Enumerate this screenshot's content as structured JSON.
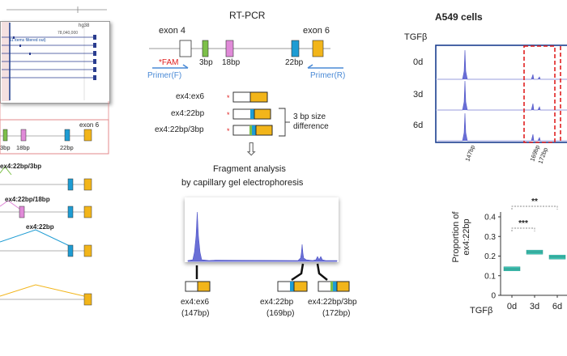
{
  "left": {
    "browser": {
      "assembly": "hg38",
      "coord": "78,040,000",
      "track": "44 (11 items filtered out)"
    },
    "zoom_exon6": "exon 6",
    "zoom_labels": [
      "3bp",
      "18bp",
      "22bp"
    ],
    "isoforms": [
      "ex4:22bp/3bp",
      "ex4:22bp/18bp",
      "ex4:22bp"
    ]
  },
  "rtpcr": {
    "title": "RT-PCR",
    "exon4": "exon 4",
    "exon6": "exon 6",
    "labels": [
      "3bp",
      "18bp",
      "22bp"
    ],
    "fam": "*FAM",
    "primer_f": "Primer(F)",
    "primer_r": "Primer(R)",
    "products": [
      "ex4:ex6",
      "ex4:22bp",
      "ex4:22bp/3bp"
    ],
    "size_note": "3 bp size\ndifference",
    "arrow": "⇩"
  },
  "fragment": {
    "title_line1": "Fragment analysis",
    "title_line2": "by capillary gel electrophoresis",
    "peaks": [
      {
        "name": "ex4:ex6",
        "size": "(147bp)"
      },
      {
        "name": "ex4:22bp",
        "size": "(169bp)"
      },
      {
        "name": "ex4:22bp/3bp",
        "size": "(172bp)"
      }
    ]
  },
  "a549": {
    "title": "A549 cells",
    "tgf_label": "TGFβ",
    "rows": [
      "0d",
      "3d",
      "6d"
    ],
    "x_labels": [
      "147bp",
      "169bp",
      "172bp"
    ]
  },
  "chart_data": {
    "type": "scatter",
    "ylabel": "Proportion of\nex4:22bp",
    "xlabel_prefix": "TGFβ",
    "categories": [
      "0d",
      "3d",
      "6d"
    ],
    "yticks": [
      "0",
      "0.1",
      "0.2",
      "0.3",
      "0.4"
    ],
    "ylim": [
      0,
      0.4
    ],
    "values": [
      0.135,
      0.22,
      0.195
    ],
    "significance": [
      {
        "from": "0d",
        "to": "3d",
        "label": "***"
      },
      {
        "from": "0d",
        "to": "6d",
        "label": "**"
      }
    ],
    "color": "#3fbfb0"
  },
  "colors": {
    "exon_white": "#ffffff",
    "green": "#7dc04a",
    "pink": "#e08ad8",
    "blue": "#1e9cd3",
    "yellow": "#f2b51a",
    "red": "#e02020",
    "primer_blue": "#4a8ad6",
    "peak": "#6a6fd6",
    "dark_blue": "#1c3f8f",
    "teal": "#3fbfb0"
  }
}
